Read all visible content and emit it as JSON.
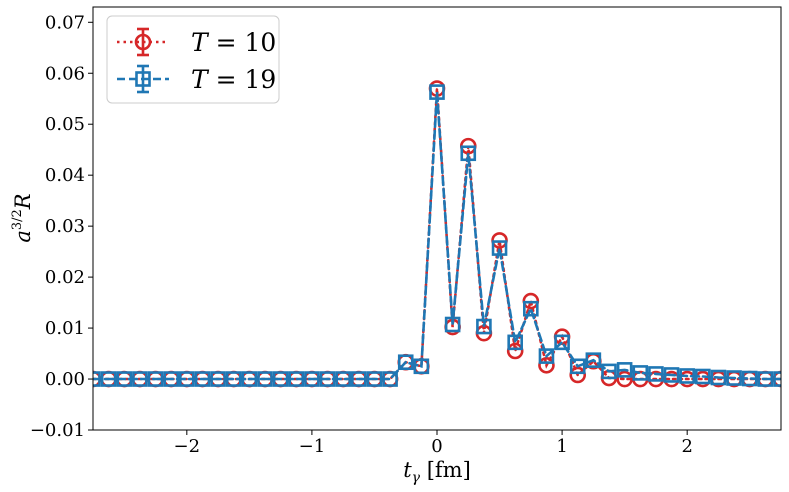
{
  "chart_data": {
    "type": "line",
    "title": "",
    "xlabel": "t_γ [fm]",
    "ylabel": "a^{3/2}R",
    "xlim": [
      -2.75,
      2.75
    ],
    "ylim": [
      -0.01,
      0.073
    ],
    "xticks": [
      -2,
      -1,
      0,
      1,
      2
    ],
    "xtick_labels": [
      "−2",
      "−1",
      "0",
      "1",
      "2"
    ],
    "yticks": [
      -0.01,
      0.0,
      0.01,
      0.02,
      0.03,
      0.04,
      0.05,
      0.06,
      0.07
    ],
    "ytick_labels": [
      "−0.01",
      "0.00",
      "0.01",
      "0.02",
      "0.03",
      "0.04",
      "0.05",
      "0.06",
      "0.07"
    ],
    "grid": false,
    "legend_position": "top-left",
    "x": [
      -2.75,
      -2.625,
      -2.5,
      -2.375,
      -2.25,
      -2.125,
      -2.0,
      -1.875,
      -1.75,
      -1.625,
      -1.5,
      -1.375,
      -1.25,
      -1.125,
      -1.0,
      -0.875,
      -0.75,
      -0.625,
      -0.5,
      -0.375,
      -0.25,
      -0.125,
      0.0,
      0.125,
      0.25,
      0.375,
      0.5,
      0.625,
      0.75,
      0.875,
      1.0,
      1.125,
      1.25,
      1.375,
      1.5,
      1.625,
      1.75,
      1.875,
      2.0,
      2.125,
      2.25,
      2.375,
      2.5,
      2.625,
      2.75
    ],
    "series": [
      {
        "name": "T = 10",
        "legend_var": "T",
        "legend_val": "= 10",
        "color": "#d62728",
        "linestyle": "dotted",
        "marker": "circle",
        "values": [
          0,
          0,
          0,
          0,
          0,
          0,
          0,
          0,
          0,
          0,
          0,
          0,
          0,
          0,
          0,
          0,
          0,
          0,
          0,
          0,
          0.0033,
          0.0025,
          0.057,
          0.0102,
          0.0457,
          0.009,
          0.0272,
          0.0055,
          0.0153,
          0.0027,
          0.0083,
          0.0008,
          0.0035,
          0.0002,
          0.0,
          0.0,
          0.0,
          0.0,
          0.0,
          0.0,
          0.0,
          0.0,
          0.0,
          0.0,
          0.0
        ]
      },
      {
        "name": "T = 19",
        "legend_var": "T",
        "legend_val": "= 19",
        "color": "#1f77b4",
        "linestyle": "dashed",
        "marker": "square",
        "values": [
          0,
          0,
          0,
          0,
          0,
          0,
          0,
          0,
          0,
          0,
          0,
          0,
          0,
          0,
          0,
          0,
          0,
          0,
          0,
          0,
          0.0033,
          0.0025,
          0.0563,
          0.0107,
          0.0443,
          0.0103,
          0.0257,
          0.0072,
          0.0138,
          0.0045,
          0.0072,
          0.0025,
          0.0037,
          0.0015,
          0.0018,
          0.0012,
          0.001,
          0.0008,
          0.0006,
          0.0005,
          0.0003,
          0.0002,
          0.0001,
          0.0,
          0.0
        ]
      }
    ]
  }
}
